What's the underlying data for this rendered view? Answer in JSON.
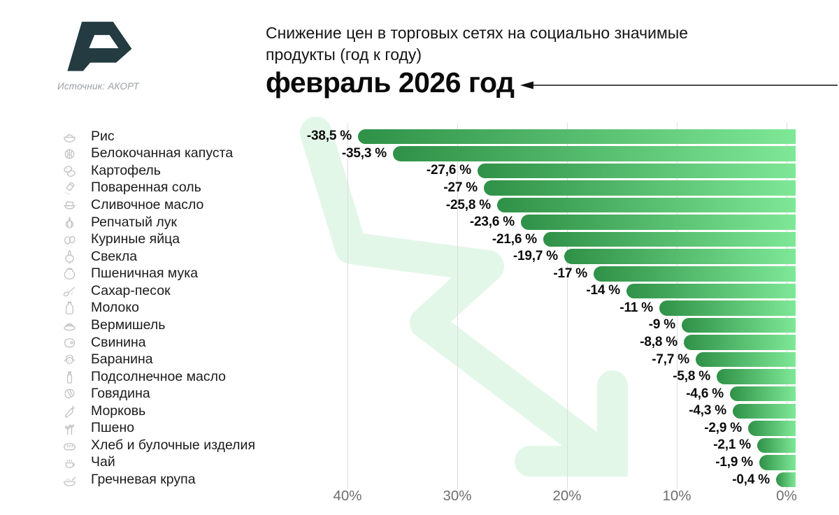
{
  "logo": {
    "source_label": "Источник: АКОРТ",
    "mark_color": "#233b41"
  },
  "header": {
    "title_line1": "Снижение цен в торговых сетях на социально значимые",
    "title_line2": "продукты (год к году)",
    "period": "февраль 2026 год"
  },
  "colors": {
    "bar_dark": "#2f9147",
    "bar_light": "#7ee897",
    "watermark": "#e3f7e9",
    "grid": "#dcdcdc",
    "axis_text": "#6e6e6e",
    "icon_stroke": "#c3c3c3"
  },
  "axis": {
    "ticks": [
      "40%",
      "30%",
      "20%",
      "10%",
      "0%"
    ]
  },
  "products": [
    {
      "icon": "rice-bowl",
      "label": "Рис",
      "value": 38.5,
      "value_label": "-38,5 %"
    },
    {
      "icon": "cabbage",
      "label": "Белокочанная капуста",
      "value": 35.3,
      "value_label": "-35,3 %"
    },
    {
      "icon": "potato",
      "label": "Картофель",
      "value": 27.6,
      "value_label": "-27,6 %"
    },
    {
      "icon": "salt-shaker",
      "label": "Поваренная соль",
      "value": 27,
      "value_label": "-27 %"
    },
    {
      "icon": "butter-dish",
      "label": "Сливочное масло",
      "value": 25.8,
      "value_label": "-25,8 %"
    },
    {
      "icon": "onion",
      "label": "Репчатый лук",
      "value": 23.6,
      "value_label": "-23,6 %"
    },
    {
      "icon": "eggs",
      "label": "Куриные яйца",
      "value": 21.6,
      "value_label": "-21,6 %"
    },
    {
      "icon": "beet",
      "label": "Свекла",
      "value": 19.7,
      "value_label": "-19,7 %"
    },
    {
      "icon": "flour-sack",
      "label": "Пшеничная мука",
      "value": 17,
      "value_label": "-17 %"
    },
    {
      "icon": "sugar-spoon",
      "label": "Сахар-песок",
      "value": 14,
      "value_label": "-14 %"
    },
    {
      "icon": "milk-bottle",
      "label": "Молоко",
      "value": 11,
      "value_label": "-11 %"
    },
    {
      "icon": "noodle-plate",
      "label": "Вермишель",
      "value": 9,
      "value_label": "-9 %"
    },
    {
      "icon": "pork-meat",
      "label": "Свинина",
      "value": 8.8,
      "value_label": "-8,8 %"
    },
    {
      "icon": "sheep",
      "label": "Баранина",
      "value": 7.7,
      "value_label": "-7,7 %"
    },
    {
      "icon": "oil-bottle",
      "label": "Подсолнечное масло",
      "value": 5.8,
      "value_label": "-5,8 %"
    },
    {
      "icon": "beef-steak",
      "label": "Говядина",
      "value": 4.6,
      "value_label": "-4,6 %"
    },
    {
      "icon": "carrot",
      "label": "Морковь",
      "value": 4.3,
      "value_label": "-4,3 %"
    },
    {
      "icon": "wheat-ears",
      "label": "Пшено",
      "value": 2.9,
      "value_label": "-2,9 %"
    },
    {
      "icon": "bread-loaf",
      "label": "Хлеб и булочные изделия",
      "value": 2.1,
      "value_label": "-2,1 %"
    },
    {
      "icon": "tea-cup",
      "label": "Чай",
      "value": 1.9,
      "value_label": "-1,9 %"
    },
    {
      "icon": "buckwheat-bowl",
      "label": "Гречневая крупа",
      "value": 0.4,
      "value_label": "-0,4 %"
    }
  ],
  "chart_data": {
    "type": "bar",
    "orientation": "horizontal",
    "title": "Снижение цен в торговых сетях на социально значимые продукты (год к году) — февраль 2026 год",
    "source": "Источник: АКОРТ",
    "categories": [
      "Рис",
      "Белокочанная капуста",
      "Картофель",
      "Поваренная соль",
      "Сливочное масло",
      "Репчатый лук",
      "Куриные яйца",
      "Свекла",
      "Пшеничная мука",
      "Сахар-песок",
      "Молоко",
      "Вермишель",
      "Свинина",
      "Баранина",
      "Подсолнечное масло",
      "Говядина",
      "Морковь",
      "Пшено",
      "Хлеб и булочные изделия",
      "Чай",
      "Гречневая крупа"
    ],
    "values": [
      -38.5,
      -35.3,
      -27.6,
      -27,
      -25.8,
      -23.6,
      -21.6,
      -19.7,
      -17,
      -14,
      -11,
      -9,
      -8.8,
      -7.7,
      -5.8,
      -4.6,
      -4.3,
      -2.9,
      -2.1,
      -1.9,
      -0.4
    ],
    "xlabel": "",
    "ylabel": "",
    "x_ticks": [
      "40%",
      "30%",
      "20%",
      "10%",
      "0%"
    ],
    "xlim": [
      -44,
      0
    ],
    "axis_reversed": true,
    "grid": true,
    "legend": false
  }
}
